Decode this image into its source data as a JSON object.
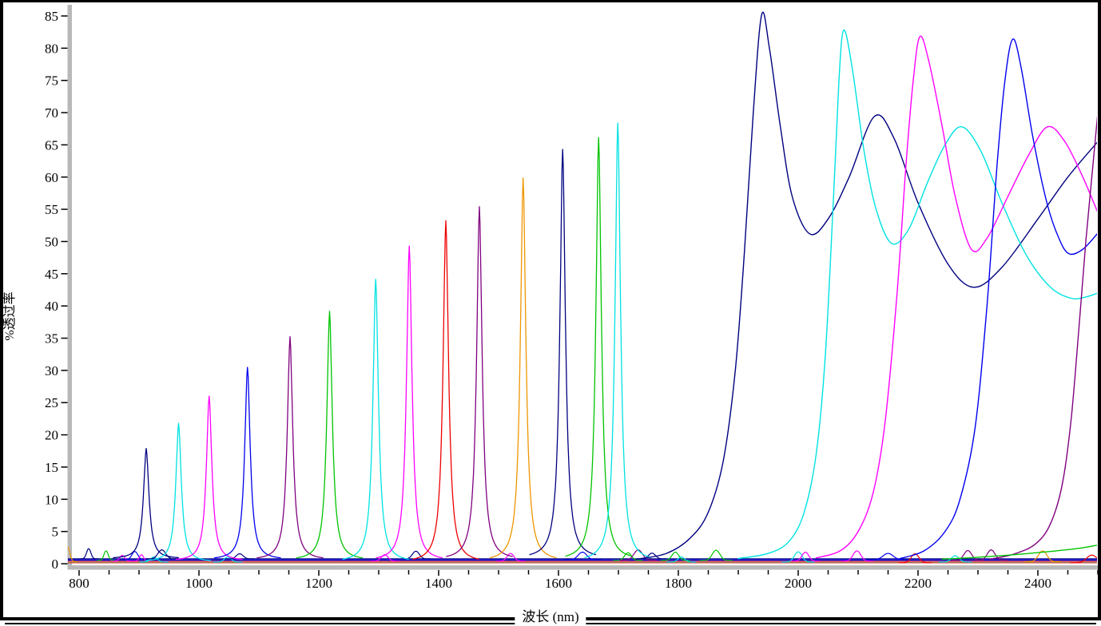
{
  "window": {
    "background": "#ffffff",
    "frame_color": "#000000"
  },
  "axes": {
    "x": {
      "label": "波长 (nm)",
      "min": 780,
      "max": 2505,
      "tick_minor_step_nm": 50,
      "tick_label_step_nm": 200,
      "tick_labels": [
        "800",
        "1000",
        "1200",
        "1400",
        "1600",
        "1800",
        "2000",
        "2200",
        "2400"
      ]
    },
    "y": {
      "label": "%透过率",
      "min": 0,
      "max": 85,
      "tick_step": 5,
      "tick_labels": [
        "0",
        "5",
        "10",
        "15",
        "20",
        "25",
        "30",
        "35",
        "40",
        "45",
        "50",
        "55",
        "60",
        "65",
        "70",
        "75",
        "80",
        "85"
      ]
    }
  },
  "palette": {
    "navy": "#000080",
    "cyan": "#00E2E2",
    "magenta": "#FF00FF",
    "blue": "#0000EE",
    "purple": "#800080",
    "green": "#00C400",
    "red": "#EE0000",
    "orange": "#EE9600"
  },
  "chart_data": {
    "type": "line",
    "title": "",
    "xlabel": "波长 (nm)",
    "ylabel": "%透过率",
    "xlim": [
      780,
      2505
    ],
    "ylim": [
      0,
      85
    ],
    "grid": false,
    "legend": "none",
    "narrow_peaks": [
      {
        "color": "navy",
        "center_nm": 912,
        "peak_transmittance_pct": 16.4
      },
      {
        "color": "cyan",
        "center_nm": 966,
        "peak_transmittance_pct": 20.6
      },
      {
        "color": "magenta",
        "center_nm": 1017,
        "peak_transmittance_pct": 24.5
      },
      {
        "color": "blue",
        "center_nm": 1081,
        "peak_transmittance_pct": 28.6
      },
      {
        "color": "purple",
        "center_nm": 1152,
        "peak_transmittance_pct": 33.2
      },
      {
        "color": "green",
        "center_nm": 1218,
        "peak_transmittance_pct": 37.0
      },
      {
        "color": "cyan",
        "center_nm": 1295,
        "peak_transmittance_pct": 42.0
      },
      {
        "color": "magenta",
        "center_nm": 1351,
        "peak_transmittance_pct": 46.8
      },
      {
        "color": "red",
        "center_nm": 1412,
        "peak_transmittance_pct": 50.8
      },
      {
        "color": "purple",
        "center_nm": 1468,
        "peak_transmittance_pct": 52.5
      },
      {
        "color": "orange",
        "center_nm": 1541,
        "peak_transmittance_pct": 57.0
      },
      {
        "color": "navy",
        "center_nm": 1607,
        "peak_transmittance_pct": 60.8
      },
      {
        "color": "green",
        "center_nm": 1667,
        "peak_transmittance_pct": 62.8
      },
      {
        "color": "cyan",
        "center_nm": 1699,
        "peak_transmittance_pct": 65.2
      }
    ],
    "broadband_series": [
      {
        "color": "navy",
        "points_nm_pct": [
          [
            1730,
            0.7
          ],
          [
            1780,
            1.6
          ],
          [
            1820,
            4
          ],
          [
            1850,
            8
          ],
          [
            1875,
            16
          ],
          [
            1895,
            30
          ],
          [
            1910,
            48
          ],
          [
            1925,
            70
          ],
          [
            1939,
            85.2
          ],
          [
            1952,
            80
          ],
          [
            1970,
            68
          ],
          [
            1990,
            57
          ],
          [
            2019,
            51.2
          ],
          [
            2050,
            53.5
          ],
          [
            2085,
            60
          ],
          [
            2127,
            69.4
          ],
          [
            2160,
            66
          ],
          [
            2200,
            56
          ],
          [
            2250,
            46.5
          ],
          [
            2293,
            42.9
          ],
          [
            2340,
            46
          ],
          [
            2400,
            53.5
          ],
          [
            2450,
            60
          ],
          [
            2500,
            65.5
          ]
        ]
      },
      {
        "color": "cyan",
        "points_nm_pct": [
          [
            1900,
            0.8
          ],
          [
            1950,
            1.6
          ],
          [
            1985,
            3.5
          ],
          [
            2010,
            8
          ],
          [
            2030,
            17
          ],
          [
            2045,
            32
          ],
          [
            2058,
            55
          ],
          [
            2068,
            75
          ],
          [
            2076,
            82.8
          ],
          [
            2090,
            77
          ],
          [
            2110,
            64
          ],
          [
            2130,
            55
          ],
          [
            2156,
            49.7
          ],
          [
            2185,
            52
          ],
          [
            2215,
            59
          ],
          [
            2245,
            65
          ],
          [
            2273,
            67.8
          ],
          [
            2305,
            64
          ],
          [
            2340,
            56
          ],
          [
            2380,
            48
          ],
          [
            2420,
            43
          ],
          [
            2455,
            41.2
          ],
          [
            2480,
            41.4
          ],
          [
            2500,
            42
          ]
        ]
      },
      {
        "color": "magenta",
        "points_nm_pct": [
          [
            2030,
            0.9
          ],
          [
            2070,
            2
          ],
          [
            2100,
            5
          ],
          [
            2125,
            11
          ],
          [
            2145,
            22
          ],
          [
            2165,
            42
          ],
          [
            2180,
            62
          ],
          [
            2192,
            75
          ],
          [
            2203,
            81.8
          ],
          [
            2218,
            78
          ],
          [
            2240,
            68
          ],
          [
            2262,
            57
          ],
          [
            2289,
            48.8
          ],
          [
            2315,
            50.5
          ],
          [
            2350,
            57
          ],
          [
            2385,
            63.5
          ],
          [
            2416,
            67.8
          ],
          [
            2445,
            65.5
          ],
          [
            2475,
            60
          ],
          [
            2500,
            54.5
          ]
        ]
      },
      {
        "color": "blue",
        "points_nm_pct": [
          [
            2170,
            0.8
          ],
          [
            2210,
            2
          ],
          [
            2245,
            5
          ],
          [
            2270,
            10
          ],
          [
            2295,
            21
          ],
          [
            2315,
            40
          ],
          [
            2332,
            62
          ],
          [
            2345,
            75
          ],
          [
            2358,
            81.4
          ],
          [
            2372,
            77
          ],
          [
            2392,
            66
          ],
          [
            2415,
            56
          ],
          [
            2435,
            50.5
          ],
          [
            2452,
            48.1
          ],
          [
            2475,
            48.8
          ],
          [
            2500,
            51.3
          ]
        ]
      },
      {
        "color": "purple",
        "points_nm_pct": [
          [
            2320,
            0.7
          ],
          [
            2360,
            1.5
          ],
          [
            2395,
            3
          ],
          [
            2420,
            6
          ],
          [
            2440,
            12
          ],
          [
            2455,
            22
          ],
          [
            2468,
            36
          ],
          [
            2480,
            50
          ],
          [
            2490,
            60
          ],
          [
            2500,
            70
          ]
        ]
      },
      {
        "color": "green",
        "points_nm_pct": [
          [
            2240,
            0.7
          ],
          [
            2300,
            1
          ],
          [
            2360,
            1.4
          ],
          [
            2420,
            1.9
          ],
          [
            2470,
            2.4
          ],
          [
            2500,
            2.9
          ]
        ]
      }
    ],
    "minor_bumps": [
      {
        "color": "orange",
        "center_nm": 781,
        "height_pct": 2.3,
        "width_nm": 5
      },
      {
        "color": "navy",
        "center_nm": 816,
        "height_pct": 1.6,
        "width_nm": 5
      },
      {
        "color": "green",
        "center_nm": 845,
        "height_pct": 1.5,
        "width_nm": 5
      },
      {
        "color": "magenta",
        "center_nm": 872,
        "height_pct": 0.9,
        "width_nm": 6
      },
      {
        "color": "blue",
        "center_nm": 893,
        "height_pct": 1.3,
        "width_nm": 7
      },
      {
        "color": "magenta",
        "center_nm": 904,
        "height_pct": 1.0,
        "width_nm": 5
      },
      {
        "color": "cyan",
        "center_nm": 925,
        "height_pct": 0.8,
        "width_nm": 8
      },
      {
        "color": "navy",
        "center_nm": 938,
        "height_pct": 1.4,
        "width_nm": 9
      },
      {
        "color": "cyan",
        "center_nm": 1048,
        "height_pct": 0.8,
        "width_nm": 8
      },
      {
        "color": "navy",
        "center_nm": 1068,
        "height_pct": 0.8,
        "width_nm": 8
      },
      {
        "color": "magenta",
        "center_nm": 1310,
        "height_pct": 1.0,
        "width_nm": 8
      },
      {
        "color": "navy",
        "center_nm": 1362,
        "height_pct": 1.2,
        "width_nm": 8
      },
      {
        "color": "magenta",
        "center_nm": 1520,
        "height_pct": 1.2,
        "width_nm": 8
      },
      {
        "color": "blue",
        "center_nm": 1640,
        "height_pct": 1.2,
        "width_nm": 10
      },
      {
        "color": "green",
        "center_nm": 1716,
        "height_pct": 1.2,
        "width_nm": 8
      },
      {
        "color": "purple",
        "center_nm": 1733,
        "height_pct": 1.6,
        "width_nm": 10
      },
      {
        "color": "navy",
        "center_nm": 1756,
        "height_pct": 0.9,
        "width_nm": 8
      },
      {
        "color": "green",
        "center_nm": 1795,
        "height_pct": 1.3,
        "width_nm": 8
      },
      {
        "color": "cyan",
        "center_nm": 1805,
        "height_pct": 0.8,
        "width_nm": 8
      },
      {
        "color": "green",
        "center_nm": 1863,
        "height_pct": 1.6,
        "width_nm": 9
      },
      {
        "color": "cyan",
        "center_nm": 2000,
        "height_pct": 1.6,
        "width_nm": 9
      },
      {
        "color": "magenta",
        "center_nm": 2012,
        "height_pct": 1.4,
        "width_nm": 8
      },
      {
        "color": "magenta",
        "center_nm": 2098,
        "height_pct": 1.6,
        "width_nm": 9
      },
      {
        "color": "blue",
        "center_nm": 2150,
        "height_pct": 1.0,
        "width_nm": 12
      },
      {
        "color": "red",
        "center_nm": 2195,
        "height_pct": 1.4,
        "width_nm": 9
      },
      {
        "color": "cyan",
        "center_nm": 2262,
        "height_pct": 1.0,
        "width_nm": 9
      },
      {
        "color": "purple",
        "center_nm": 2283,
        "height_pct": 1.5,
        "width_nm": 9
      },
      {
        "color": "purple",
        "center_nm": 2322,
        "height_pct": 1.6,
        "width_nm": 9
      },
      {
        "color": "orange",
        "center_nm": 2408,
        "height_pct": 1.7,
        "width_nm": 10
      },
      {
        "color": "red",
        "center_nm": 2490,
        "height_pct": 1.2,
        "width_nm": 12
      }
    ],
    "baselines": [
      {
        "color": "red",
        "level_pct": 0.15
      },
      {
        "color": "cyan",
        "level_pct": 0.25
      },
      {
        "color": "orange",
        "level_pct": 0.3
      },
      {
        "color": "magenta",
        "level_pct": 0.4
      },
      {
        "color": "green",
        "level_pct": 0.5
      },
      {
        "color": "purple",
        "level_pct": 0.55
      },
      {
        "color": "blue",
        "level_pct": 0.6
      },
      {
        "color": "navy",
        "level_pct": 0.75
      }
    ]
  }
}
